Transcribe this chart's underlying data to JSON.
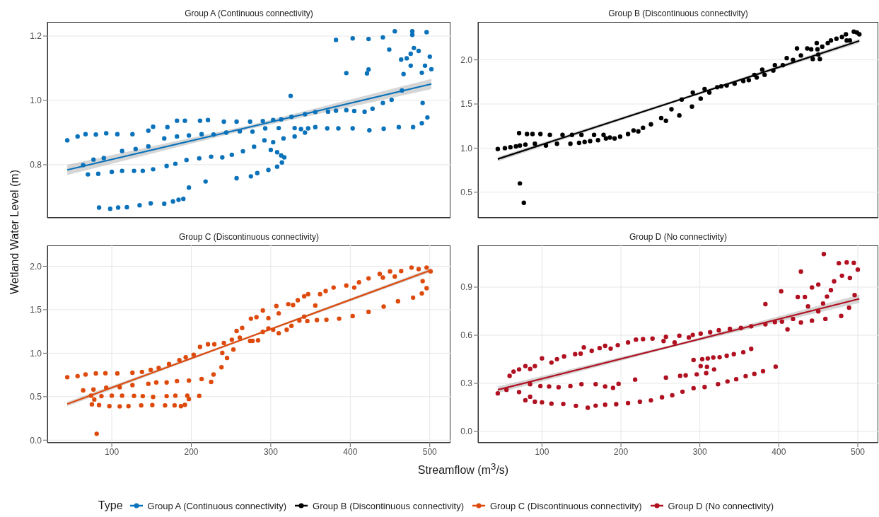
{
  "chart_data": [
    {
      "type": "scatter",
      "title": "Group A (Continuous connectivity)",
      "ylabel": "Wetland Water Level (m)",
      "legend": "bottom",
      "legend_title": "Type",
      "grid": true,
      "tick_labels": "y",
      "xlim": [
        19,
        526
      ],
      "xticks": [
        100,
        200,
        300,
        400,
        500
      ],
      "ylim": [
        0.635,
        1.244
      ],
      "yticks": [
        0.8,
        {
          "value": 1,
          "label": "1.0"
        },
        1.2
      ],
      "series": [
        {
          "name": "Group A (Continuous connectivity)",
          "color": "#0a72ba",
          "marker": "circle",
          "x": [
            44,
            57,
            67,
            80,
            93,
            107,
            126,
            146,
            152,
            170,
            182,
            192,
            211,
            221,
            241,
            257,
            274,
            290,
            303,
            313,
            326,
            343,
            356,
            372,
            382,
            395,
            405,
            418,
            428,
            441,
            452,
            465,
            382,
            403,
            423,
            441,
            456,
            478,
            496,
            478,
            449,
            480,
            476,
            464,
            471,
            500,
            494,
            502,
            476,
            486,
            467,
            490,
            395,
            423,
            421,
            325,
            491,
            497,
            64,
            77,
            90,
            113,
            130,
            146,
            166,
            182,
            197,
            213,
            228,
            244,
            261,
            277,
            293,
            310,
            330,
            338,
            356,
            371,
            385,
            403,
            424,
            442,
            461,
            479,
            490,
            70,
            83,
            100,
            113,
            128,
            139,
            152,
            169,
            180,
            194,
            210,
            225,
            239,
            251,
            265,
            279,
            292,
            300,
            308,
            313,
            317,
            303,
            316,
            330,
            343,
            347,
            218,
            257,
            275,
            283,
            297,
            308,
            314,
            84,
            98,
            108,
            119,
            135,
            149,
            166,
            177,
            184,
            190,
            197
          ],
          "values": [
            0.876,
            0.888,
            0.895,
            0.894,
            0.898,
            0.895,
            0.895,
            0.906,
            0.918,
            0.917,
            0.937,
            0.937,
            0.937,
            0.939,
            0.934,
            0.934,
            0.934,
            0.936,
            0.939,
            0.941,
            0.949,
            0.957,
            0.964,
            0.965,
            0.968,
            0.97,
            0.967,
            0.965,
            0.974,
            0.992,
            1.002,
            1.031,
            1.188,
            1.193,
            1.191,
            1.196,
            1.215,
            1.215,
            1.212,
            1.204,
            1.158,
            1.163,
            1.145,
            1.127,
            1.131,
            1.136,
            1.108,
            1.097,
            1.108,
            1.154,
            1.082,
            1.086,
            1.085,
            1.096,
            1.084,
            1.014,
            0.992,
            0.947,
            0.799,
            0.816,
            0.821,
            0.843,
            0.849,
            0.857,
            0.882,
            0.888,
            0.891,
            0.895,
            0.894,
            0.9,
            0.904,
            0.903,
            0.913,
            0.914,
            0.914,
            0.911,
            0.917,
            0.913,
            0.913,
            0.913,
            0.907,
            0.912,
            0.917,
            0.917,
            0.929,
            0.77,
            0.772,
            0.778,
            0.781,
            0.781,
            0.781,
            0.786,
            0.796,
            0.803,
            0.815,
            0.82,
            0.825,
            0.823,
            0.831,
            0.842,
            0.856,
            0.876,
            0.846,
            0.839,
            0.829,
            0.823,
            0.87,
            0.882,
            0.888,
            0.9,
            0.913,
            0.748,
            0.758,
            0.764,
            0.774,
            0.784,
            0.794,
            0.807,
            0.667,
            0.663,
            0.667,
            0.668,
            0.674,
            0.68,
            0.679,
            0.686,
            0.691,
            0.694,
            0.729
          ]
        },
        {
          "type": "line",
          "color": "#0a72ba",
          "x": [
            44,
            273,
            502
          ],
          "values": [
            0.784,
            0.917,
            1.051
          ],
          "lower": [
            0.768,
            0.911,
            1.035
          ],
          "upper": [
            0.8,
            0.923,
            1.067
          ]
        }
      ]
    },
    {
      "type": "scatter",
      "title": "Group B (Discontinuous connectivity)",
      "grid": true,
      "tick_labels": "y",
      "xlim": [
        19,
        526
      ],
      "xticks": [
        100,
        200,
        300,
        400,
        500
      ],
      "ylim": [
        0.21,
        2.43
      ],
      "yticks": [
        0.5,
        {
          "value": 1,
          "label": "1.0"
        },
        1.5,
        {
          "value": 2,
          "label": "2.0"
        }
      ],
      "series": [
        {
          "name": "Group B (Discontinuous connectivity)",
          "color": "#000000",
          "marker": "circle",
          "x": [
            44,
            53,
            60,
            67,
            72,
            79,
            91,
            105,
            119,
            136,
            147,
            154,
            161,
            171,
            181,
            192,
            199,
            209,
            216,
            222,
            228,
            238,
            251,
            257,
            264,
            274,
            277,
            290,
            291,
            301,
            306,
            312,
            322,
            327,
            334,
            344,
            355,
            362,
            369,
            372,
            379,
            382,
            393,
            395,
            405,
            410,
            418,
            423,
            428,
            436,
            441,
            443,
            448,
            449,
            450,
            452,
            455,
            462,
            466,
            473,
            480,
            485,
            486,
            490,
            495,
            499,
            502,
            71,
            81,
            88,
            98,
            110,
            126,
            138,
            150,
            166,
            178,
            186,
            72,
            77
          ],
          "values": [
            0.99,
            1.0,
            1.01,
            1.02,
            1.03,
            1.04,
            1.05,
            1.03,
            1.05,
            1.05,
            1.06,
            1.07,
            1.08,
            1.09,
            1.11,
            1.11,
            1.13,
            1.16,
            1.2,
            1.19,
            1.23,
            1.27,
            1.34,
            1.31,
            1.44,
            1.37,
            1.55,
            1.47,
            1.63,
            1.56,
            1.67,
            1.63,
            1.69,
            1.7,
            1.71,
            1.73,
            1.76,
            1.77,
            1.83,
            1.8,
            1.89,
            1.83,
            1.88,
            1.94,
            1.94,
            2.02,
            2.0,
            2.13,
            2.05,
            2.13,
            2.12,
            2.01,
            2.19,
            2.12,
            2.06,
            2.01,
            2.15,
            2.19,
            2.22,
            2.24,
            2.26,
            2.29,
            2.22,
            2.22,
            2.32,
            2.31,
            2.29,
            1.17,
            1.16,
            1.16,
            1.16,
            1.15,
            1.15,
            1.15,
            1.15,
            1.15,
            1.15,
            1.12,
            0.6,
            0.38
          ]
        },
        {
          "type": "line",
          "color": "#000000",
          "x": [
            44,
            273,
            502
          ],
          "values": [
            0.876,
            1.545,
            2.215
          ],
          "lower": [
            0.85,
            1.53,
            2.19
          ],
          "upper": [
            0.9,
            1.56,
            2.24
          ]
        }
      ]
    },
    {
      "type": "scatter",
      "title": "Group C (Discontinuous connectivity)",
      "xlabel": "Streamflow (m$^{3}$/s)",
      "grid": true,
      "xlim": [
        19,
        526
      ],
      "xticks": [
        100,
        200,
        300,
        400,
        500
      ],
      "ylim": [
        -0.03,
        2.24
      ],
      "yticks": [
        {
          "value": 0,
          "label": "0.0"
        },
        0.5,
        {
          "value": 1,
          "label": "1.0"
        },
        1.5,
        {
          "value": 2,
          "label": "2.0"
        }
      ],
      "series": [
        {
          "name": "Group C (Discontinuous connectivity)",
          "color": "#de4a0c",
          "marker": "circle",
          "x": [
            44,
            57,
            67,
            80,
            92,
            107,
            126,
            138,
            149,
            159,
            172,
            185,
            193,
            203,
            211,
            221,
            229,
            241,
            251,
            257,
            264,
            274,
            284,
            275,
            282,
            290,
            297,
            307,
            310,
            322,
            328,
            334,
            342,
            347,
            356,
            362,
            369,
            379,
            395,
            405,
            411,
            423,
            437,
            441,
            450,
            456,
            464,
            477,
            486,
            496,
            501,
            491,
            496,
            490,
            479,
            460,
            442,
            423,
            403,
            386,
            370,
            358,
            346,
            64,
            77,
            93,
            110,
            126,
            146,
            156,
            169,
            182,
            197,
            213,
            225,
            228,
            238,
            245,
            253,
            239,
            74,
            87,
            100,
            113,
            128,
            139,
            152,
            169,
            180,
            195,
            197,
            210,
            75,
            84,
            97,
            110,
            121,
            137,
            151,
            167,
            179,
            187,
            192,
            78,
            81,
            297,
            303,
            290,
            310,
            320,
            326,
            336,
            342,
            261,
            277
          ],
          "values": [
            0.724,
            0.736,
            0.755,
            0.767,
            0.77,
            0.767,
            0.776,
            0.785,
            0.809,
            0.83,
            0.876,
            0.921,
            0.952,
            0.982,
            1.073,
            1.103,
            1.103,
            1.118,
            1.155,
            1.255,
            1.291,
            1.142,
            1.148,
            1.397,
            1.415,
            1.491,
            1.403,
            1.542,
            1.458,
            1.564,
            1.555,
            1.609,
            1.655,
            1.679,
            1.548,
            1.679,
            1.715,
            1.755,
            1.779,
            1.755,
            1.815,
            1.861,
            1.912,
            1.87,
            1.942,
            1.882,
            1.945,
            1.985,
            1.967,
            1.985,
            1.942,
            1.83,
            1.748,
            1.688,
            1.639,
            1.597,
            1.536,
            1.476,
            1.427,
            1.397,
            1.385,
            1.382,
            1.37,
            0.573,
            0.582,
            0.603,
            0.609,
            0.633,
            0.648,
            0.664,
            0.664,
            0.679,
            0.685,
            0.703,
            0.67,
            0.755,
            0.839,
            0.945,
            1.042,
            1.003,
            0.512,
            0.506,
            0.512,
            0.512,
            0.509,
            0.506,
            0.497,
            0.506,
            0.512,
            0.512,
            0.473,
            0.509,
            0.412,
            0.403,
            0.391,
            0.388,
            0.391,
            0.4,
            0.403,
            0.4,
            0.4,
            0.391,
            0.406,
            0.467,
            0.073,
            1.285,
            1.27,
            1.245,
            1.23,
            1.27,
            1.315,
            1.376,
            1.421,
            1.179,
            1.142
          ]
        },
        {
          "type": "line",
          "color": "#de4a0c",
          "x": [
            44,
            273,
            502
          ],
          "values": [
            0.415,
            1.186,
            1.958
          ],
          "lower": [
            0.39,
            1.175,
            1.935
          ],
          "upper": [
            0.44,
            1.197,
            1.98
          ]
        }
      ]
    },
    {
      "type": "scatter",
      "title": "Group D (No connectivity)",
      "grid": true,
      "xlim": [
        19,
        526
      ],
      "xticks": [
        100,
        200,
        300,
        400,
        500
      ],
      "ylim": [
        -0.07,
        1.16
      ],
      "yticks": [
        {
          "value": 0,
          "label": "0.0"
        },
        0.3,
        0.6,
        0.9
      ],
      "series": [
        {
          "name": "Group D (No connectivity)",
          "color": "#b01020",
          "marker": "circle",
          "x": [
            44,
            55,
            59,
            64,
            71,
            79,
            85,
            91,
            100,
            112,
            119,
            128,
            142,
            149,
            153,
            163,
            173,
            180,
            187,
            196,
            209,
            219,
            228,
            240,
            254,
            257,
            268,
            274,
            286,
            291,
            301,
            313,
            324,
            338,
            352,
            365,
            383,
            395,
            404,
            411,
            418,
            428,
            437,
            442,
            450,
            459,
            461,
            456,
            466,
            470,
            476,
            486,
            495,
            500,
            479,
            489,
            496,
            450,
            457,
            428,
            433,
            424,
            403,
            383,
            442,
            480,
            490,
            71,
            85,
            79,
            85,
            91,
            100,
            112,
            127,
            143,
            158,
            168,
            180,
            194,
            209,
            224,
            238,
            252,
            265,
            278,
            292,
            306,
            323,
            335,
            346,
            358,
            369,
            380,
            396,
            98,
            109,
            121,
            136,
            150,
            168,
            180,
            190,
            197,
            218,
            257,
            275,
            282,
            296,
            292,
            303,
            310,
            317,
            325,
            334,
            343,
            355,
            365,
            301,
            309,
            318,
            308
          ],
          "values": [
            0.238,
            0.26,
            0.347,
            0.373,
            0.387,
            0.408,
            0.39,
            0.408,
            0.456,
            0.43,
            0.451,
            0.468,
            0.482,
            0.486,
            0.524,
            0.503,
            0.52,
            0.534,
            0.517,
            0.538,
            0.555,
            0.573,
            0.576,
            0.579,
            0.564,
            0.59,
            0.555,
            0.597,
            0.586,
            0.602,
            0.61,
            0.619,
            0.631,
            0.64,
            0.645,
            0.656,
            0.668,
            0.682,
            0.685,
            0.637,
            0.702,
            0.68,
            0.78,
            0.691,
            0.749,
            0.702,
            0.841,
            0.798,
            0.881,
            0.936,
            1.049,
            1.054,
            1.051,
            1.009,
            0.72,
            0.772,
            0.85,
            0.916,
            1.106,
            0.997,
            0.838,
            0.838,
            0.874,
            0.794,
            0.898,
            0.971,
            0.957,
            0.246,
            0.295,
            0.195,
            0.217,
            0.186,
            0.182,
            0.174,
            0.172,
            0.16,
            0.148,
            0.161,
            0.167,
            0.17,
            0.177,
            0.186,
            0.194,
            0.213,
            0.226,
            0.248,
            0.27,
            0.277,
            0.295,
            0.312,
            0.326,
            0.345,
            0.359,
            0.376,
            0.404,
            0.283,
            0.281,
            0.276,
            0.283,
            0.295,
            0.295,
            0.281,
            0.272,
            0.297,
            0.324,
            0.336,
            0.347,
            0.35,
            0.356,
            0.446,
            0.451,
            0.455,
            0.461,
            0.463,
            0.472,
            0.482,
            0.494,
            0.515,
            0.408,
            0.403,
            0.387,
            0.364
          ]
        },
        {
          "type": "line",
          "color": "#b01020",
          "x": [
            44,
            273,
            502
          ],
          "values": [
            0.26,
            0.543,
            0.827
          ],
          "lower": [
            0.24,
            0.535,
            0.802
          ],
          "upper": [
            0.28,
            0.551,
            0.852
          ]
        }
      ]
    }
  ]
}
